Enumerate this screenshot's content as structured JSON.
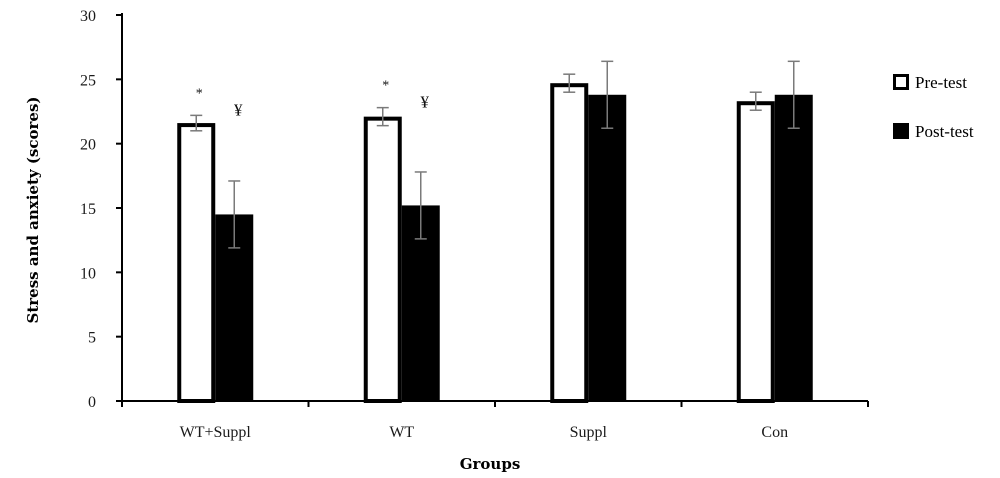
{
  "chart_data": {
    "type": "bar",
    "title": "",
    "xlabel": "Groups",
    "ylabel": "Stress and anxiety (scores)",
    "ylim": [
      0,
      30
    ],
    "yticks": [
      0,
      5,
      10,
      15,
      20,
      25,
      30
    ],
    "categories": [
      "WT+Suppl",
      "WT",
      "Suppl",
      "Con"
    ],
    "series": [
      {
        "name": "Pre-test",
        "values": [
          21.6,
          22.1,
          24.7,
          23.3
        ],
        "errors": [
          0.6,
          0.7,
          0.7,
          0.7
        ],
        "fill": "#ffffff",
        "stroke": "#000000"
      },
      {
        "name": "Post-test",
        "values": [
          14.5,
          15.2,
          23.8,
          23.8
        ],
        "errors": [
          2.6,
          2.6,
          2.6,
          2.6
        ],
        "fill": "#000000",
        "stroke": "#000000"
      }
    ],
    "annotations": [
      {
        "category": "WT+Suppl",
        "series": "Pre-test",
        "text": "*"
      },
      {
        "category": "WT+Suppl",
        "series": "Post-test",
        "text": "¥"
      },
      {
        "category": "WT",
        "series": "Pre-test",
        "text": "*"
      },
      {
        "category": "WT",
        "series": "Post-test",
        "text": "¥"
      }
    ],
    "legend": {
      "position": "right",
      "entries": [
        "Pre-test",
        "Post-test"
      ]
    },
    "grid": false
  }
}
